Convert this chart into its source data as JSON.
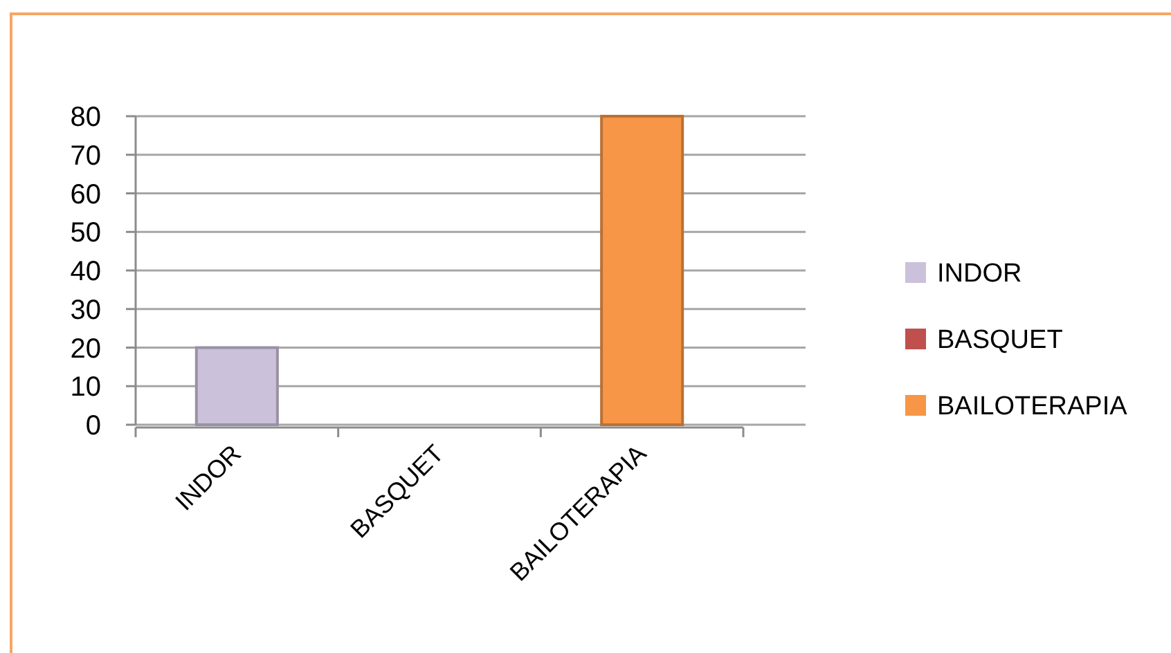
{
  "chart_data": {
    "type": "bar",
    "categories": [
      "INDOR",
      "BASQUET",
      "BAILOTERAPIA"
    ],
    "series": [
      {
        "name": "INDOR",
        "color": "#ccc1da",
        "values": [
          20,
          null,
          null
        ]
      },
      {
        "name": "BASQUET",
        "color": "#c0504d",
        "values": [
          null,
          0,
          null
        ]
      },
      {
        "name": "BAILOTERAPIA",
        "color": "#f79646",
        "values": [
          null,
          null,
          80
        ]
      }
    ],
    "ylim": [
      0,
      80
    ],
    "yticks": [
      0,
      10,
      20,
      30,
      40,
      50,
      60,
      70,
      80
    ],
    "grid": "y",
    "legend": "right"
  }
}
